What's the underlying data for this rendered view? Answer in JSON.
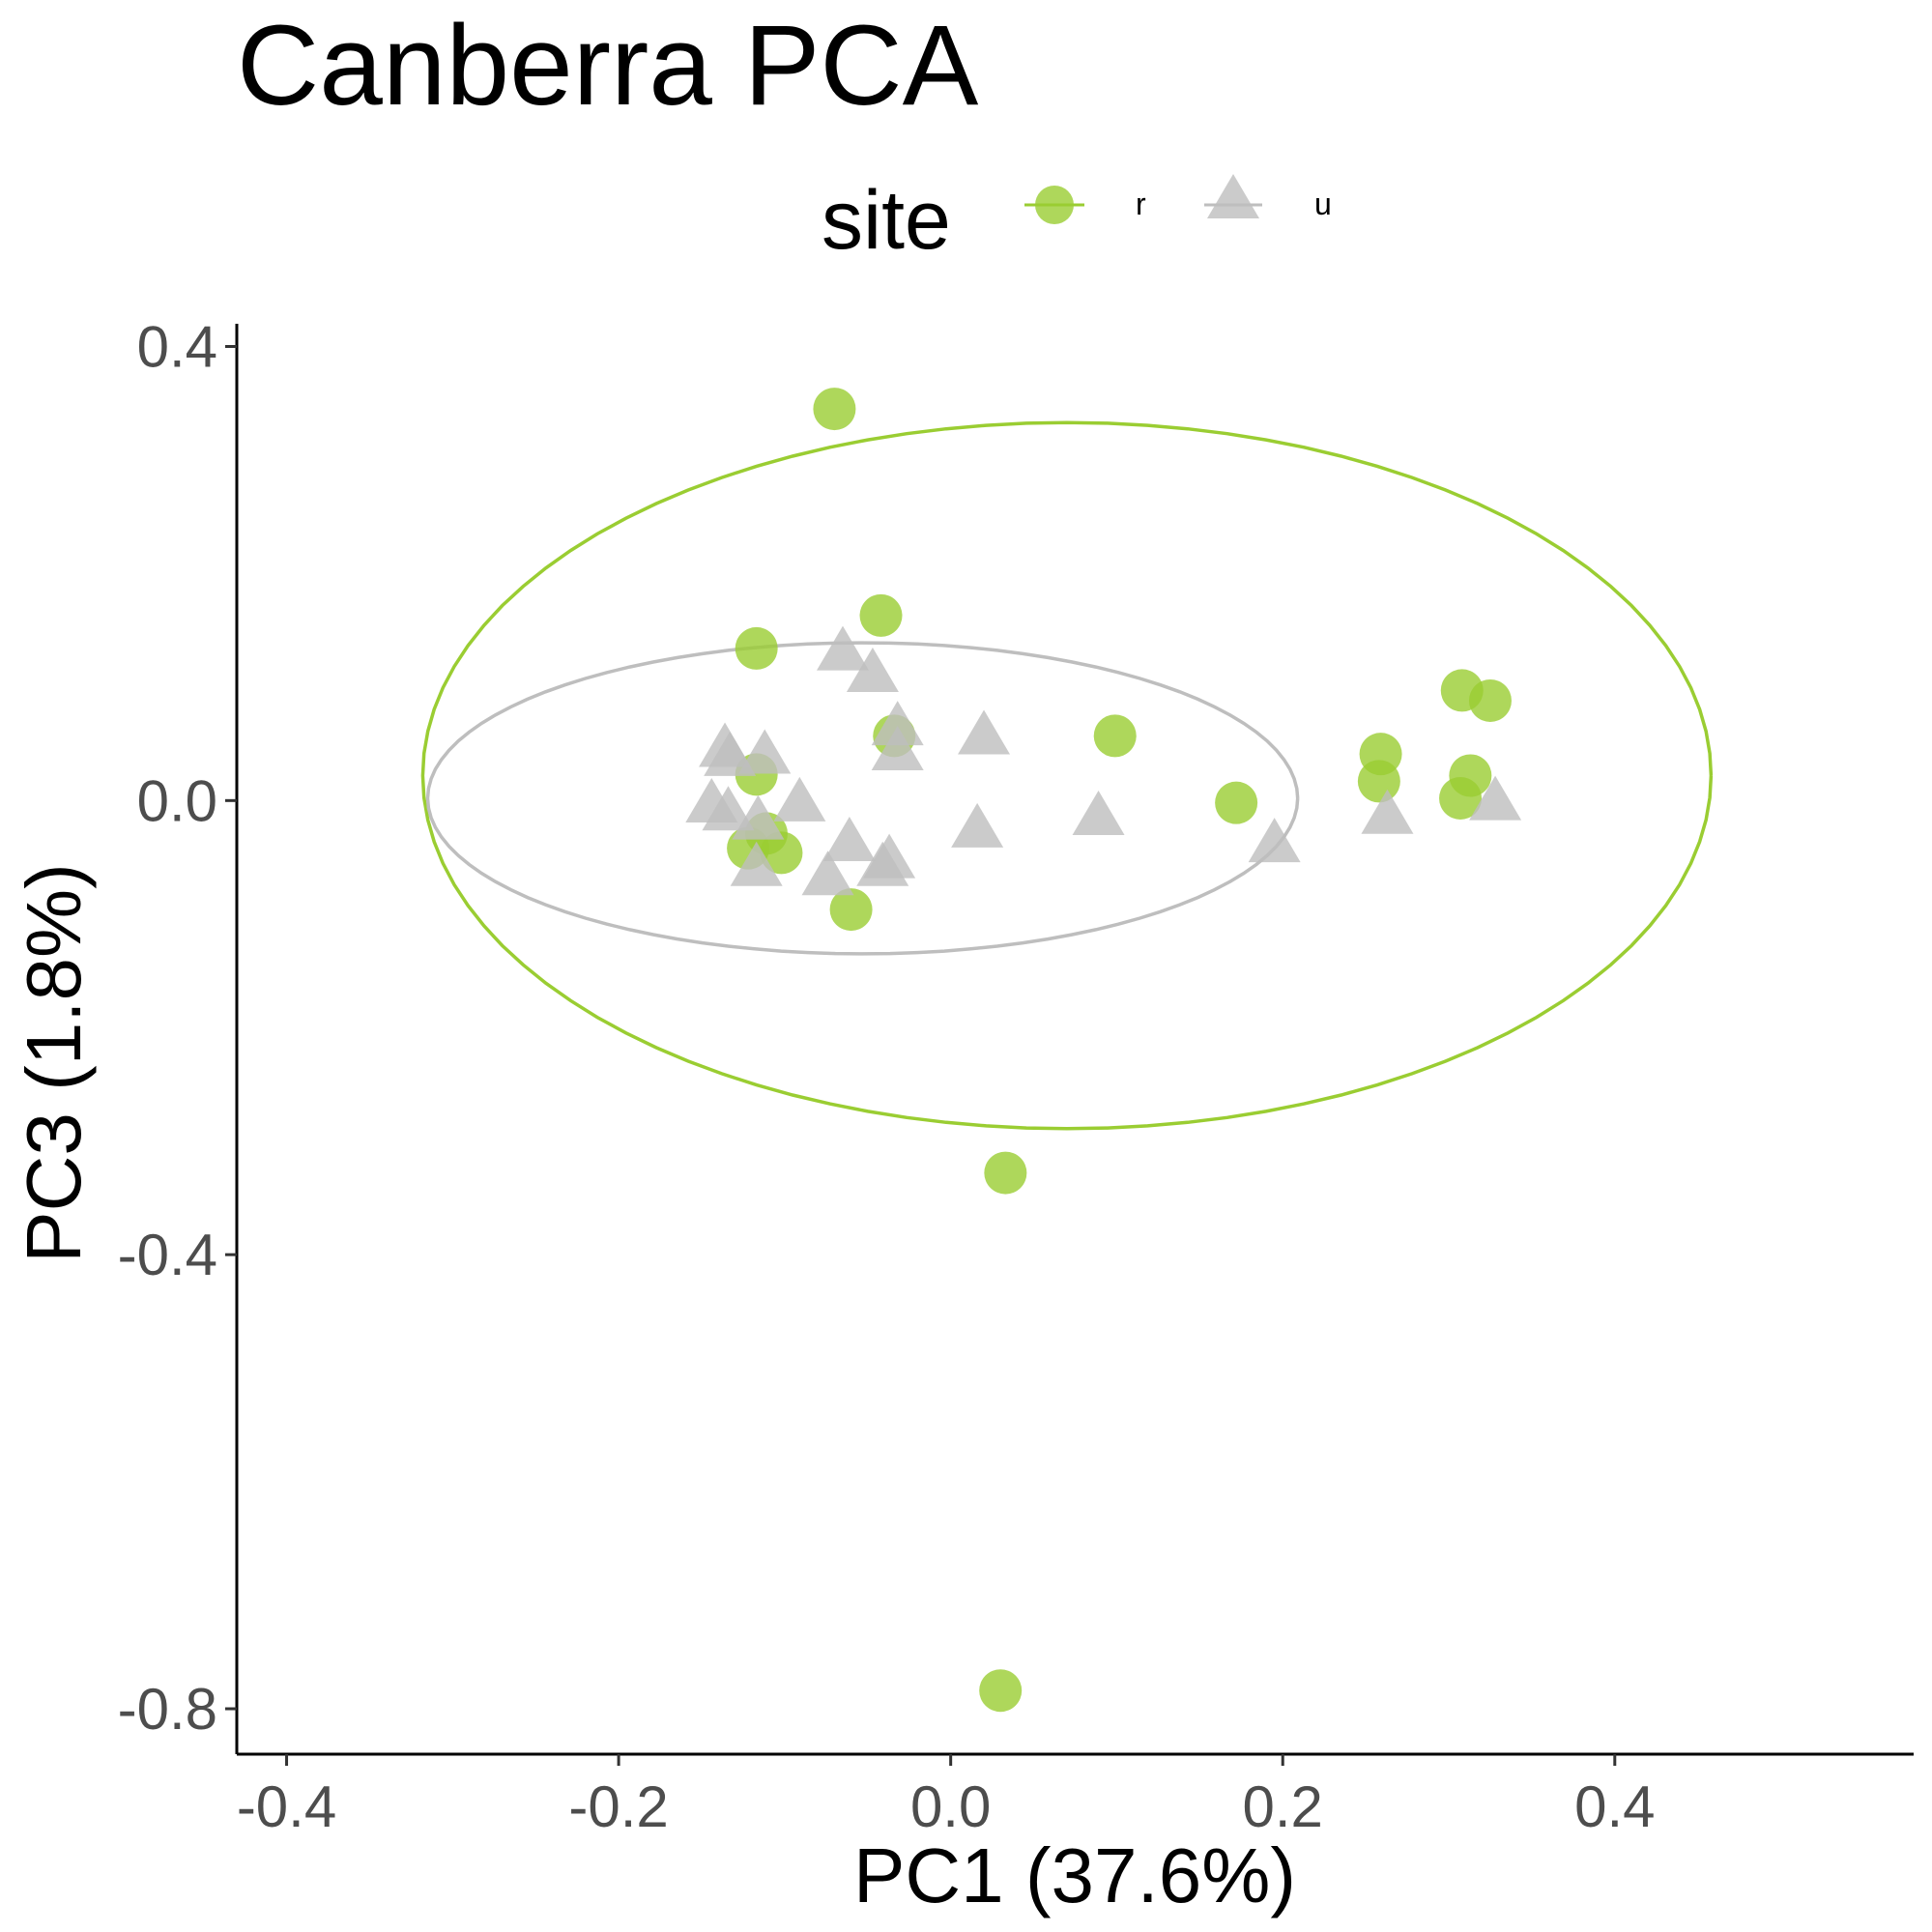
{
  "chart_data": {
    "type": "scatter",
    "title": "Canberra PCA",
    "xlabel": "PC1 (37.6%)",
    "ylabel": "PC3 (1.8%)",
    "xlim": [
      -0.43,
      0.58
    ],
    "ylim": [
      -0.84,
      0.42
    ],
    "x_ticks": [
      -0.4,
      -0.2,
      0.0,
      0.2,
      0.4
    ],
    "x_tick_labels": [
      "-0.4",
      "-0.2",
      "0.0",
      "0.2",
      "0.4"
    ],
    "y_ticks": [
      0.4,
      0.0,
      -0.4,
      -0.8
    ],
    "y_tick_labels": [
      "0.4",
      "0.0",
      "-0.4",
      "-0.8"
    ],
    "grid": false,
    "legend": {
      "title": "site",
      "position": "top",
      "entries": [
        {
          "label": "r",
          "shape": "circle",
          "color": "#9acd32"
        },
        {
          "label": "u",
          "shape": "triangle",
          "color": "#bebebe"
        }
      ]
    },
    "series": [
      {
        "name": "r",
        "shape": "circle",
        "color": "#9acd32",
        "points": [
          {
            "x": -0.07,
            "y": 0.345
          },
          {
            "x": -0.042,
            "y": 0.163
          },
          {
            "x": -0.117,
            "y": 0.134
          },
          {
            "x": 0.308,
            "y": 0.097
          },
          {
            "x": 0.325,
            "y": 0.088
          },
          {
            "x": -0.034,
            "y": 0.057
          },
          {
            "x": 0.099,
            "y": 0.057
          },
          {
            "x": 0.259,
            "y": 0.041
          },
          {
            "x": -0.117,
            "y": 0.023
          },
          {
            "x": 0.313,
            "y": 0.022
          },
          {
            "x": 0.258,
            "y": 0.017
          },
          {
            "x": 0.307,
            "y": 0.002
          },
          {
            "x": 0.172,
            "y": -0.002
          },
          {
            "x": -0.111,
            "y": -0.029
          },
          {
            "x": -0.122,
            "y": -0.042
          },
          {
            "x": -0.102,
            "y": -0.046
          },
          {
            "x": -0.06,
            "y": -0.096
          },
          {
            "x": 0.033,
            "y": -0.328
          },
          {
            "x": 0.03,
            "y": -0.784
          }
        ]
      },
      {
        "name": "u",
        "shape": "triangle",
        "color": "#bebebe",
        "points": [
          {
            "x": -0.065,
            "y": 0.13
          },
          {
            "x": -0.047,
            "y": 0.111
          },
          {
            "x": -0.032,
            "y": 0.064
          },
          {
            "x": 0.02,
            "y": 0.056
          },
          {
            "x": -0.032,
            "y": 0.042
          },
          {
            "x": -0.136,
            "y": 0.045
          },
          {
            "x": -0.133,
            "y": 0.037
          },
          {
            "x": -0.112,
            "y": 0.039
          },
          {
            "x": -0.091,
            "y": -0.003
          },
          {
            "x": -0.144,
            "y": -0.004
          },
          {
            "x": -0.134,
            "y": -0.011
          },
          {
            "x": -0.116,
            "y": -0.019
          },
          {
            "x": 0.016,
            "y": -0.026
          },
          {
            "x": 0.089,
            "y": -0.015
          },
          {
            "x": 0.328,
            "y": -0.002
          },
          {
            "x": 0.263,
            "y": -0.014
          },
          {
            "x": 0.195,
            "y": -0.039
          },
          {
            "x": -0.061,
            "y": -0.038
          },
          {
            "x": -0.037,
            "y": -0.053
          },
          {
            "x": -0.041,
            "y": -0.06
          },
          {
            "x": -0.117,
            "y": -0.06
          },
          {
            "x": -0.074,
            "y": -0.068
          }
        ]
      }
    ],
    "ellipses": [
      {
        "series": "r",
        "color": "#9acd32",
        "cx": 0.07,
        "cy": 0.022,
        "rx": 0.388,
        "ry": 0.311
      },
      {
        "series": "u",
        "color": "#bebebe",
        "cx": -0.053,
        "cy": 0.002,
        "rx": 0.262,
        "ry": 0.137
      }
    ]
  }
}
